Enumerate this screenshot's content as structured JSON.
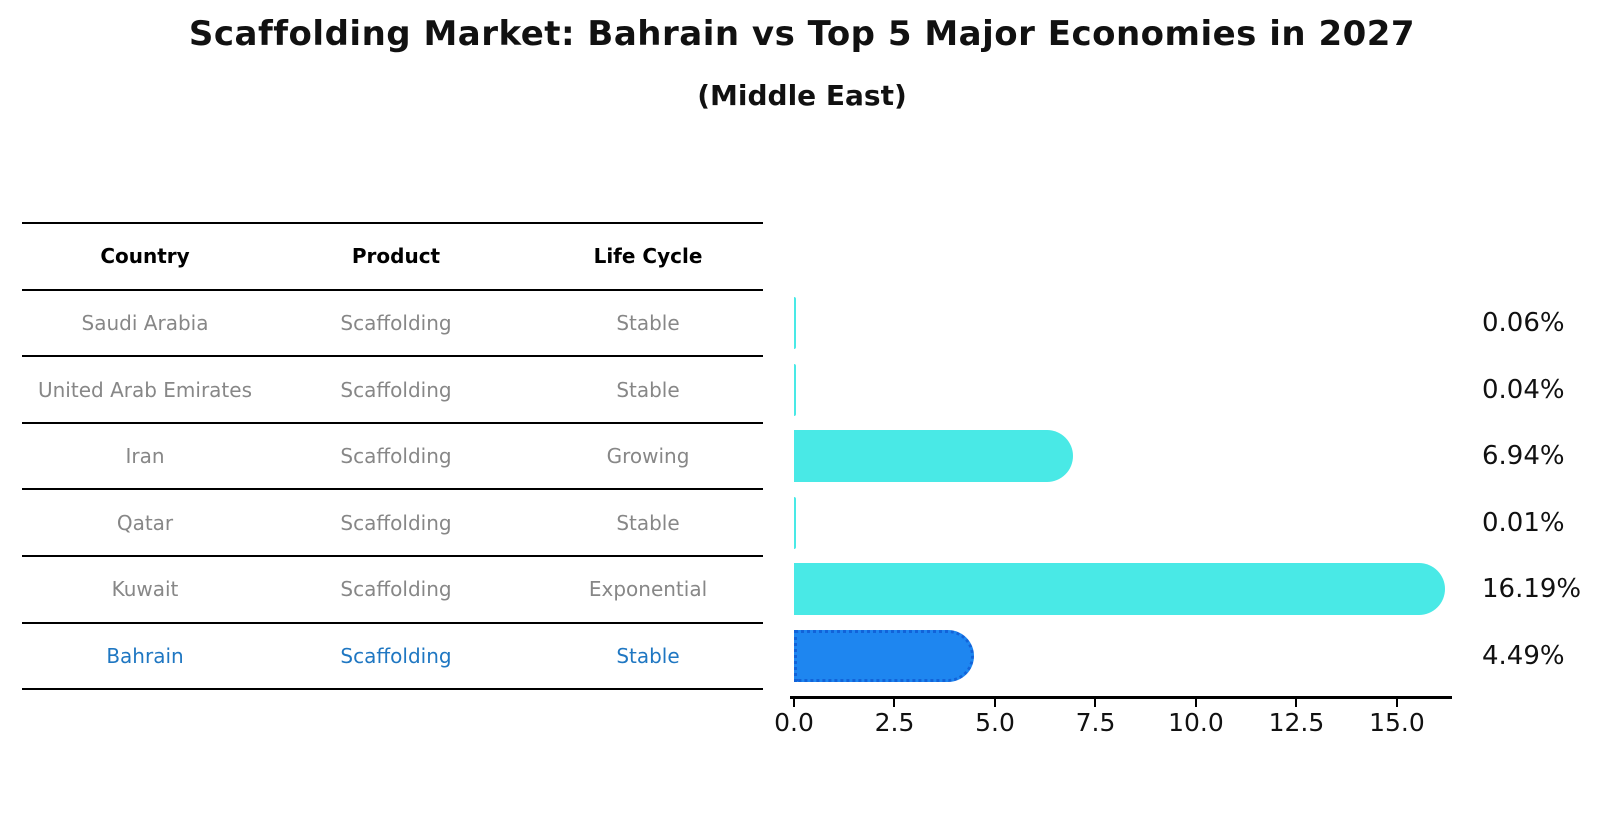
{
  "title": "Scaffolding Market: Bahrain vs Top 5 Major Economies in 2027",
  "subtitle": "(Middle East)",
  "table": {
    "headers": [
      "Country",
      "Product",
      "Life Cycle"
    ],
    "rows": [
      {
        "country": "Saudi Arabia",
        "product": "Scaffolding",
        "life_cycle": "Stable",
        "highlight": false
      },
      {
        "country": "United Arab Emirates",
        "product": "Scaffolding",
        "life_cycle": "Stable",
        "highlight": false
      },
      {
        "country": "Iran",
        "product": "Scaffolding",
        "life_cycle": "Growing",
        "highlight": false
      },
      {
        "country": "Qatar",
        "product": "Scaffolding",
        "life_cycle": "Stable",
        "highlight": false
      },
      {
        "country": "Kuwait",
        "product": "Scaffolding",
        "life_cycle": "Exponential",
        "highlight": false
      },
      {
        "country": "Bahrain",
        "product": "Scaffolding",
        "life_cycle": "Stable",
        "highlight": true
      }
    ]
  },
  "chart_data": {
    "type": "bar",
    "orientation": "horizontal",
    "categories": [
      "Saudi Arabia",
      "United Arab Emirates",
      "Iran",
      "Qatar",
      "Kuwait",
      "Bahrain"
    ],
    "values": [
      0.06,
      0.04,
      6.94,
      0.01,
      16.19,
      4.49
    ],
    "value_labels": [
      "0.06%",
      "0.04%",
      "6.94%",
      "0.01%",
      "16.19%",
      "4.49%"
    ],
    "highlight_index": 5,
    "xlim": [
      0,
      16.32
    ],
    "x_ticks": [
      0.0,
      2.5,
      5.0,
      7.5,
      10.0,
      12.5,
      15.0
    ],
    "x_tick_labels": [
      "0.0",
      "2.5",
      "5.0",
      "7.5",
      "10.0",
      "12.5",
      "15.0"
    ],
    "grid": false,
    "legend": "none",
    "title": "Scaffolding Market: Bahrain vs Top 5 Major Economies in 2027",
    "subtitle": "(Middle East)",
    "xlabel": "",
    "ylabel": ""
  },
  "colors": {
    "bar_default": "#49e9e6",
    "bar_highlight_fill": "#1e86f0",
    "bar_highlight_border": "#1263d9",
    "table_text": "#878787",
    "table_header_text": "#000000",
    "highlight_text": "#1f77c2",
    "axis_text": "#111111",
    "line": "#000000",
    "background": "#ffffff"
  }
}
